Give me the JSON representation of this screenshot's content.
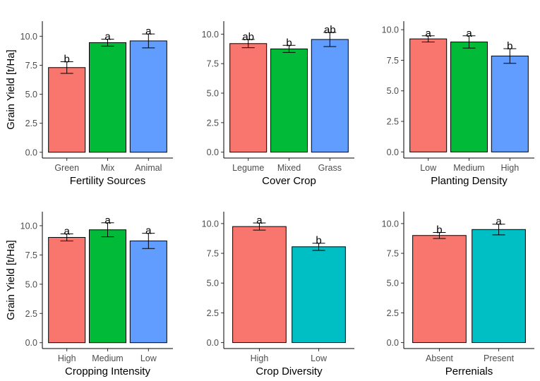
{
  "figure": {
    "ylabel": "Grain Yield [t/Ha]"
  },
  "chart_data": [
    {
      "type": "bar",
      "xlabel": "Fertility Sources",
      "ylabel": "Grain Yield [t/Ha]",
      "categories": [
        "Green",
        "Mix",
        "Animal"
      ],
      "values": [
        7.3,
        9.45,
        9.6
      ],
      "error_low": [
        6.8,
        9.15,
        9.0
      ],
      "error_high": [
        7.8,
        9.75,
        10.2
      ],
      "letters": [
        "b",
        "a",
        "a"
      ],
      "colors": [
        "#F8766D",
        "#00BA38",
        "#619CFF"
      ],
      "ylim": [
        -0.5,
        11.3
      ],
      "yticks": [
        0.0,
        2.5,
        5.0,
        7.5,
        10.0
      ],
      "ytick_labels": [
        "0.0",
        "2.5",
        "5.0",
        "7.5",
        "10.0"
      ]
    },
    {
      "type": "bar",
      "xlabel": "Cover Crop",
      "ylabel": "",
      "categories": [
        "Legume",
        "Mixed",
        "Grass"
      ],
      "values": [
        9.2,
        8.75,
        9.55
      ],
      "error_low": [
        8.85,
        8.45,
        8.95
      ],
      "error_high": [
        9.55,
        9.05,
        10.15
      ],
      "letters": [
        "ab",
        "b",
        "ab"
      ],
      "colors": [
        "#F8766D",
        "#00BA38",
        "#619CFF"
      ],
      "ylim": [
        -0.5,
        11.1
      ],
      "yticks": [
        0.0,
        2.5,
        5.0,
        7.5,
        10.0
      ],
      "ytick_labels": [
        "0.0",
        "2.5",
        "5.0",
        "7.5",
        "10.0"
      ]
    },
    {
      "type": "bar",
      "xlabel": "Planting Density",
      "ylabel": "",
      "categories": [
        "Low",
        "Medium",
        "High"
      ],
      "values": [
        9.25,
        9.0,
        7.85
      ],
      "error_low": [
        9.0,
        8.5,
        7.25
      ],
      "error_high": [
        9.5,
        9.5,
        8.45
      ],
      "letters": [
        "a",
        "a",
        "b"
      ],
      "colors": [
        "#F8766D",
        "#00BA38",
        "#619CFF"
      ],
      "ylim": [
        -0.5,
        10.7
      ],
      "yticks": [
        0.0,
        2.5,
        5.0,
        7.5,
        10.0
      ],
      "ytick_labels": [
        "0.0",
        "2.5",
        "5.0",
        "7.5",
        "10.0"
      ]
    },
    {
      "type": "bar",
      "xlabel": "Cropping Intensity",
      "ylabel": "Grain Yield [t/Ha]",
      "categories": [
        "High",
        "Medium",
        "Low"
      ],
      "values": [
        9.0,
        9.65,
        8.7
      ],
      "error_low": [
        8.7,
        9.05,
        8.05
      ],
      "error_high": [
        9.3,
        10.25,
        9.35
      ],
      "letters": [
        "a",
        "a",
        "a"
      ],
      "colors": [
        "#F8766D",
        "#00BA38",
        "#619CFF"
      ],
      "ylim": [
        -0.5,
        11.2
      ],
      "yticks": [
        0.0,
        2.5,
        5.0,
        7.5,
        10.0
      ],
      "ytick_labels": [
        "0.0",
        "2.5",
        "5.0",
        "7.5",
        "10.0"
      ]
    },
    {
      "type": "bar",
      "xlabel": "Crop Diversity",
      "ylabel": "",
      "categories": [
        "High",
        "Low"
      ],
      "values": [
        9.75,
        8.05
      ],
      "error_low": [
        9.45,
        7.75
      ],
      "error_high": [
        10.05,
        8.35
      ],
      "letters": [
        "a",
        "b"
      ],
      "colors": [
        "#F8766D",
        "#00BFC4"
      ],
      "ylim": [
        -0.5,
        11.0
      ],
      "yticks": [
        0.0,
        2.5,
        5.0,
        7.5,
        10.0
      ],
      "ytick_labels": [
        "0.0",
        "2.5",
        "5.0",
        "7.5",
        "10.0"
      ]
    },
    {
      "type": "bar",
      "xlabel": "Perrenials",
      "ylabel": "",
      "categories": [
        "Absent",
        "Present"
      ],
      "values": [
        9.0,
        9.5
      ],
      "error_low": [
        8.75,
        9.05
      ],
      "error_high": [
        9.25,
        9.95
      ],
      "letters": [
        "b",
        "a"
      ],
      "colors": [
        "#F8766D",
        "#00BFC4"
      ],
      "ylim": [
        -0.5,
        11.0
      ],
      "yticks": [
        0.0,
        2.5,
        5.0,
        7.5,
        10.0
      ],
      "ytick_labels": [
        "0.0",
        "2.5",
        "5.0",
        "7.5",
        "10.0"
      ]
    }
  ]
}
